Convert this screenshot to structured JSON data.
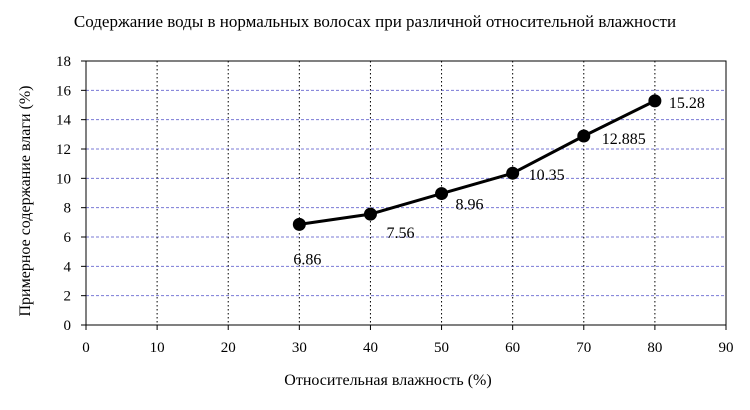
{
  "chart_data": {
    "type": "line",
    "title": "Содержание воды в нормальных волосах при различной относительной влажности",
    "xlabel": "Относительная влажность (%)",
    "ylabel": "Примерное содержание влаги (%)",
    "xlim": [
      0,
      90
    ],
    "ylim": [
      0,
      18
    ],
    "x_ticks": [
      0,
      10,
      20,
      30,
      40,
      50,
      60,
      70,
      80,
      90
    ],
    "y_ticks": [
      0,
      2,
      4,
      6,
      8,
      10,
      12,
      14,
      16,
      18
    ],
    "grid": {
      "x": "dotted-black",
      "y": "dashed-blue"
    },
    "line_color": "#000000",
    "grid_y_color": "#7a7ad6",
    "series": [
      {
        "x": [
          30,
          40,
          50,
          60,
          70,
          80
        ],
        "y": [
          6.86,
          7.56,
          8.96,
          10.35,
          12.885,
          15.28
        ],
        "labels": [
          "6.86",
          "7.56",
          "8.96",
          "10.35",
          "12.885",
          "15.28"
        ]
      }
    ]
  }
}
